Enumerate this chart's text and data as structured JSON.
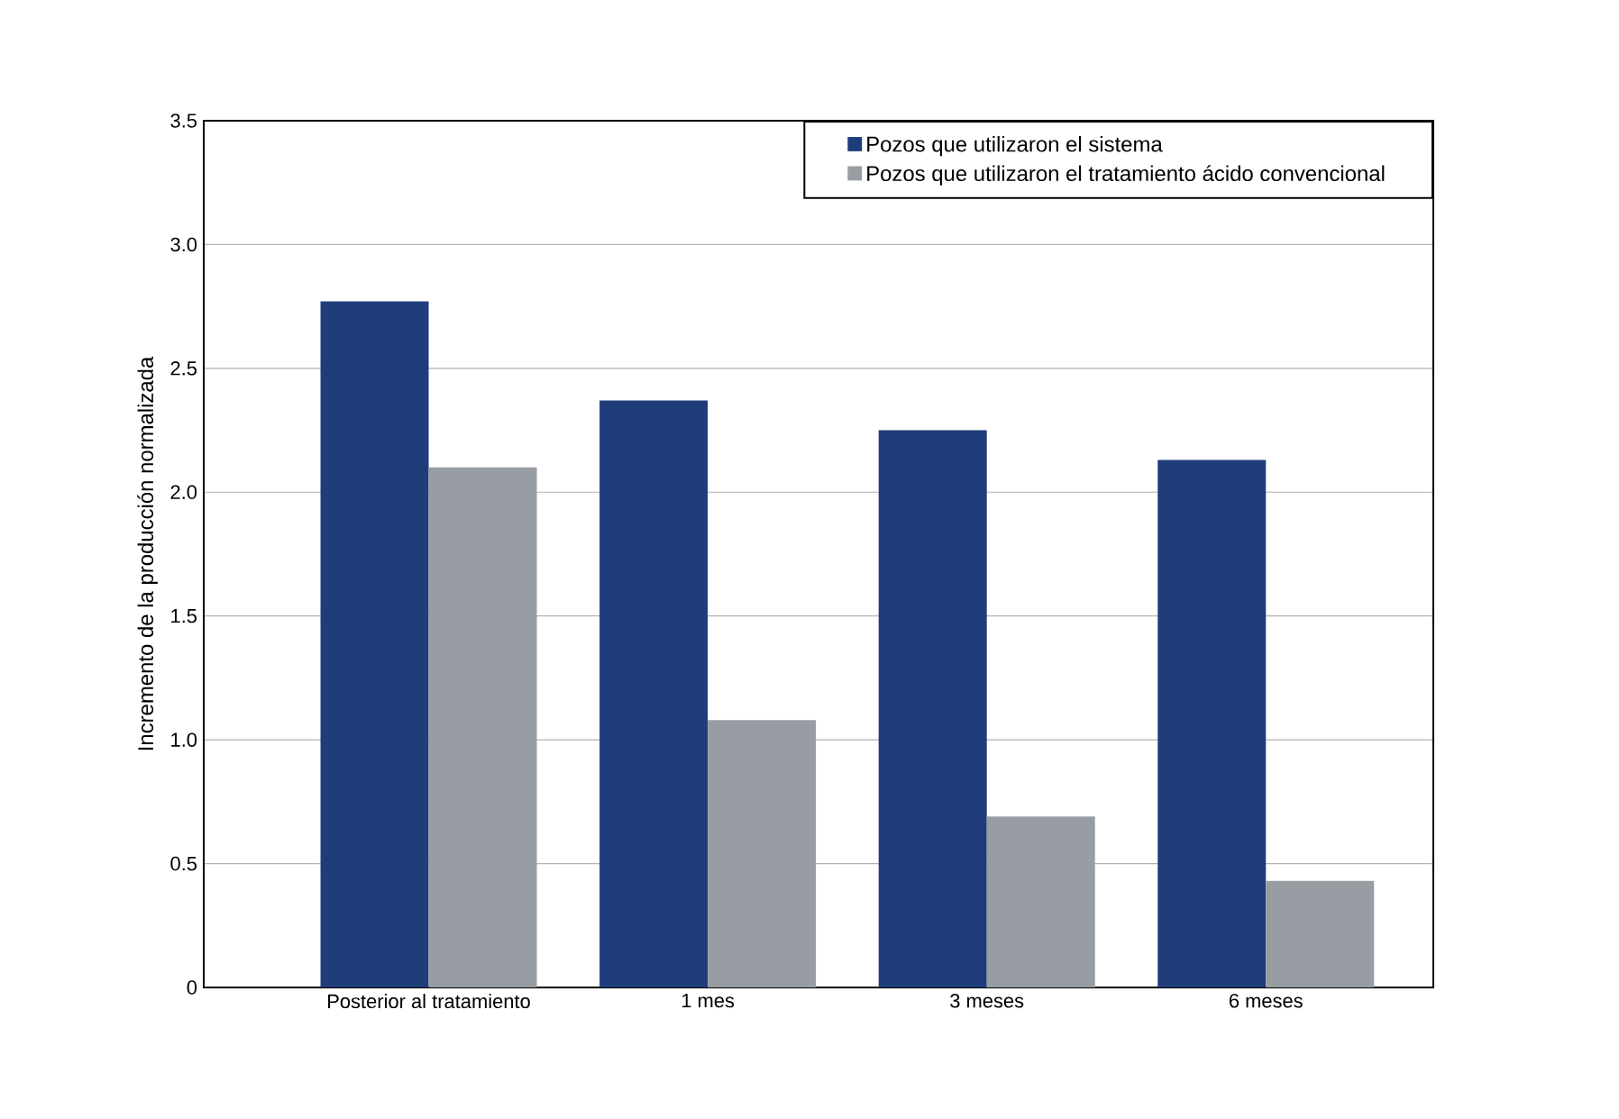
{
  "chart_data": {
    "type": "bar",
    "ylabel": "Incremento de la producción normalizada",
    "categories": [
      "Posterior al tratamiento",
      "1 mes",
      "3 meses",
      "6 meses"
    ],
    "series": [
      {
        "name": "Pozos que utilizaron el sistema",
        "color": "#1f3d7a",
        "values": [
          2.77,
          2.37,
          2.25,
          2.13
        ]
      },
      {
        "name": "Pozos que utilizaron el tratamiento ácido convencional",
        "color": "#979da3",
        "values": [
          2.1,
          1.08,
          0.69,
          0.43
        ]
      }
    ],
    "ylim": [
      0,
      3.5
    ],
    "yticks": [
      {
        "value": 0,
        "label": "0"
      },
      {
        "value": 0.5,
        "label": "0.5"
      },
      {
        "value": 1,
        "label": "1.0"
      },
      {
        "value": 1.5,
        "label": "1.5"
      },
      {
        "value": 2,
        "label": "2.0"
      },
      {
        "value": 2.5,
        "label": "2.5"
      },
      {
        "value": 3,
        "label": "3.0"
      },
      {
        "value": 3.5,
        "label": "3.5"
      }
    ],
    "grid": "y",
    "legend": "top right"
  }
}
